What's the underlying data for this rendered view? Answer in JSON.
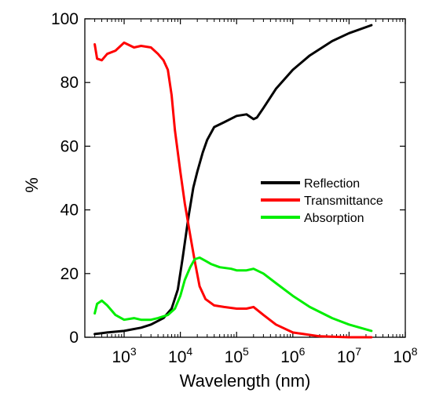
{
  "chart_data": {
    "type": "line",
    "title": "",
    "xlabel": "Wavelength (nm)",
    "ylabel": "%",
    "x_scale": "log",
    "xlim": [
      200,
      100000000
    ],
    "ylim": [
      0,
      100
    ],
    "x_ticks": [
      {
        "value": 1000,
        "base": "10",
        "exp": "3"
      },
      {
        "value": 10000,
        "base": "10",
        "exp": "4"
      },
      {
        "value": 100000,
        "base": "10",
        "exp": "5"
      },
      {
        "value": 1000000,
        "base": "10",
        "exp": "6"
      },
      {
        "value": 10000000,
        "base": "10",
        "exp": "7"
      },
      {
        "value": 100000000,
        "base": "10",
        "exp": "8"
      }
    ],
    "y_ticks": [
      0,
      20,
      40,
      60,
      80,
      100
    ],
    "grid": false,
    "legend_position": "center-right",
    "series": [
      {
        "name": "Reflection",
        "color": "#000000",
        "points": [
          [
            300,
            1
          ],
          [
            500,
            1.5
          ],
          [
            1000,
            2
          ],
          [
            2000,
            3
          ],
          [
            3000,
            4
          ],
          [
            5000,
            6
          ],
          [
            7000,
            9
          ],
          [
            9000,
            15
          ],
          [
            11000,
            25
          ],
          [
            14000,
            38
          ],
          [
            17000,
            47
          ],
          [
            20000,
            52
          ],
          [
            25000,
            58
          ],
          [
            30000,
            62
          ],
          [
            40000,
            66
          ],
          [
            60000,
            67.5
          ],
          [
            100000,
            69.5
          ],
          [
            150000,
            70
          ],
          [
            200000,
            68.5
          ],
          [
            230000,
            69
          ],
          [
            300000,
            72
          ],
          [
            500000,
            78
          ],
          [
            1000000,
            84
          ],
          [
            2000000,
            88.5
          ],
          [
            5000000,
            93
          ],
          [
            10000000,
            95.5
          ],
          [
            25000000,
            98
          ]
        ]
      },
      {
        "name": "Transmittance",
        "color": "#ff0000",
        "points": [
          [
            300,
            92
          ],
          [
            330,
            87.5
          ],
          [
            400,
            87
          ],
          [
            500,
            89
          ],
          [
            700,
            90
          ],
          [
            1000,
            92.5
          ],
          [
            1500,
            91
          ],
          [
            2000,
            91.5
          ],
          [
            3000,
            91
          ],
          [
            4000,
            89
          ],
          [
            5000,
            87
          ],
          [
            6000,
            84
          ],
          [
            7000,
            76
          ],
          [
            8000,
            65
          ],
          [
            10000,
            52
          ],
          [
            12000,
            42
          ],
          [
            15000,
            32
          ],
          [
            18000,
            24
          ],
          [
            22000,
            16
          ],
          [
            28000,
            12
          ],
          [
            40000,
            10
          ],
          [
            60000,
            9.5
          ],
          [
            100000,
            9
          ],
          [
            150000,
            9
          ],
          [
            200000,
            9.5
          ],
          [
            300000,
            7
          ],
          [
            500000,
            4
          ],
          [
            1000000,
            1.5
          ],
          [
            3000000,
            0.3
          ],
          [
            10000000,
            0
          ],
          [
            25000000,
            0
          ]
        ]
      },
      {
        "name": "Absorption",
        "color": "#00ee00",
        "points": [
          [
            300,
            7.5
          ],
          [
            330,
            10.5
          ],
          [
            400,
            11.5
          ],
          [
            500,
            10
          ],
          [
            700,
            7
          ],
          [
            1000,
            5.5
          ],
          [
            1500,
            6
          ],
          [
            2000,
            5.5
          ],
          [
            3000,
            5.5
          ],
          [
            4000,
            6
          ],
          [
            6000,
            7
          ],
          [
            8000,
            9
          ],
          [
            10000,
            13
          ],
          [
            12000,
            18
          ],
          [
            15000,
            22
          ],
          [
            18000,
            24.5
          ],
          [
            22000,
            25
          ],
          [
            28000,
            24
          ],
          [
            35000,
            23
          ],
          [
            50000,
            22
          ],
          [
            80000,
            21.5
          ],
          [
            100000,
            21
          ],
          [
            150000,
            21
          ],
          [
            200000,
            21.5
          ],
          [
            300000,
            20
          ],
          [
            500000,
            17
          ],
          [
            1000000,
            13
          ],
          [
            2000000,
            9.5
          ],
          [
            5000000,
            6
          ],
          [
            10000000,
            4
          ],
          [
            25000000,
            2
          ]
        ]
      }
    ]
  }
}
